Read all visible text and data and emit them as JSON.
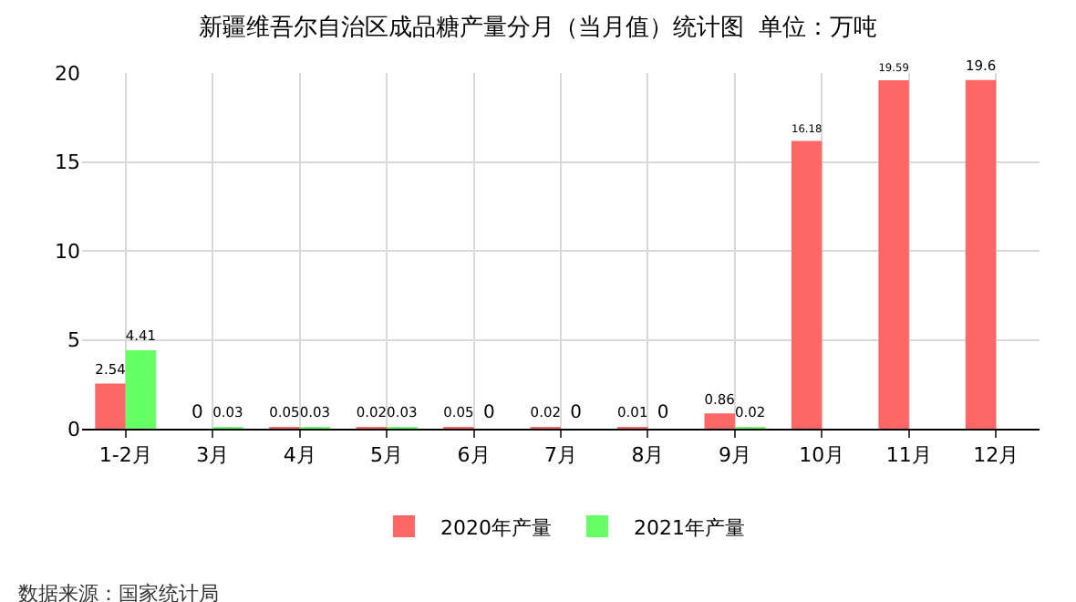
{
  "chart_data": {
    "type": "bar",
    "title": "新疆维吾尔自治区成品糖产量分月（当月值）统计图  单位：万吨",
    "categories": [
      "1-2月",
      "3月",
      "4月",
      "5月",
      "6月",
      "7月",
      "8月",
      "9月",
      "10月",
      "11月",
      "12月"
    ],
    "series": [
      {
        "name": "2020年产量",
        "color": "#ff6666",
        "values": [
          2.54,
          0,
          0.05,
          0.02,
          0.05,
          0.02,
          0.01,
          0.86,
          16.18,
          19.59,
          19.6
        ]
      },
      {
        "name": "2021年产量",
        "color": "#66ff66",
        "values": [
          4.41,
          0.03,
          0.03,
          0.03,
          0,
          0,
          0,
          0.02,
          null,
          null,
          null
        ]
      }
    ],
    "ylim": [
      0,
      20
    ],
    "yticks": [
      0,
      5,
      10,
      15,
      20
    ],
    "grid": true,
    "legend": "bottom",
    "data_labels": true,
    "annotations": [
      "数据来源：国家统计局"
    ]
  }
}
